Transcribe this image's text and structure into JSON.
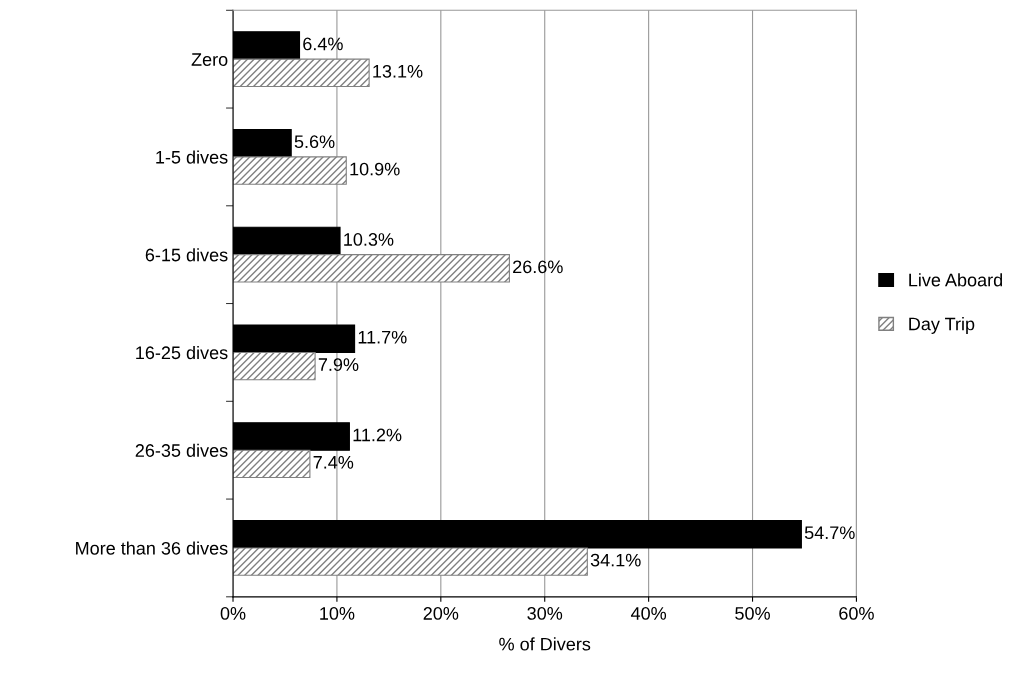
{
  "chart_data": {
    "type": "bar",
    "orientation": "horizontal",
    "xlabel": "% of Divers",
    "categories": [
      "Zero",
      "1-5 dives",
      "6-15 dives",
      "16-25 dives",
      "26-35 dives",
      "More than 36 dives"
    ],
    "series": [
      {
        "name": "Live Aboard",
        "color": "#000000",
        "values": [
          6.4,
          5.6,
          10.3,
          11.7,
          11.2,
          54.7
        ],
        "value_labels": [
          "6.4%",
          "5.6%",
          "10.3%",
          "11.7%",
          "11.2%",
          "54.7%"
        ]
      },
      {
        "name": "Day Trip",
        "color": "#808080",
        "values": [
          13.1,
          10.9,
          26.6,
          7.9,
          7.4,
          34.1
        ],
        "value_labels": [
          "13.1%",
          "10.9%",
          "26.6%",
          "7.9%",
          "7.4%",
          "34.1%"
        ]
      }
    ],
    "xlim": [
      0,
      60
    ],
    "xticks": [
      {
        "value": 0,
        "label": "0%"
      },
      {
        "value": 10,
        "label": "10%"
      },
      {
        "value": 20,
        "label": "20%"
      },
      {
        "value": 30,
        "label": "30%"
      },
      {
        "value": 40,
        "label": "40%"
      },
      {
        "value": 50,
        "label": "50%"
      },
      {
        "value": 60,
        "label": "60%"
      }
    ],
    "grid": "x",
    "legend": "right"
  }
}
